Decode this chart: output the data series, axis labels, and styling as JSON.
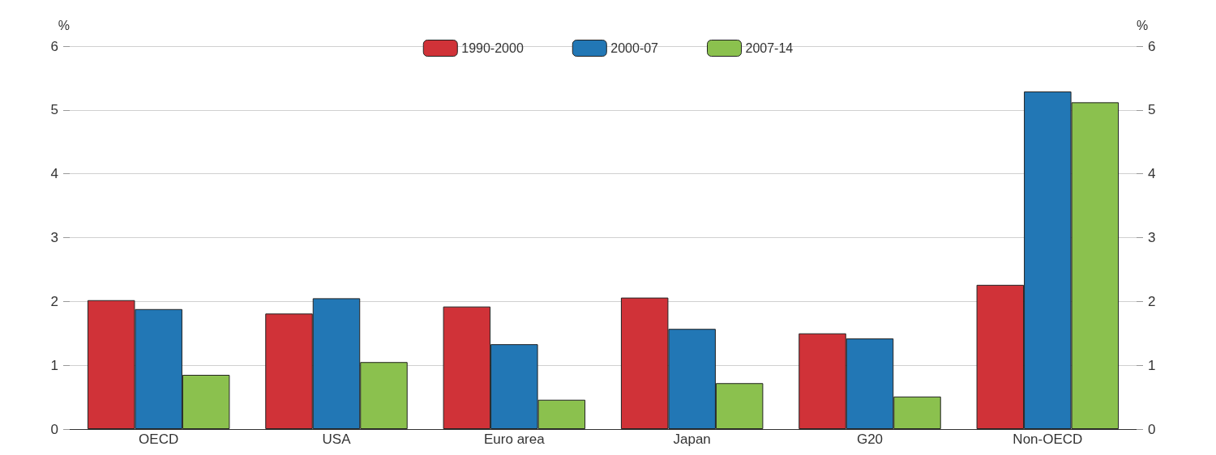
{
  "chart_data": {
    "type": "bar",
    "ylabel": "%",
    "y2label": "%",
    "categories": [
      "OECD",
      "USA",
      "Euro area",
      "Japan",
      "G20",
      "Non-OECD"
    ],
    "series": [
      {
        "name": "1990-2000",
        "color": "#d03238",
        "values": [
          2.02,
          1.81,
          1.92,
          2.06,
          1.5,
          2.26
        ]
      },
      {
        "name": "2000-07",
        "color": "#2277b5",
        "values": [
          1.88,
          2.05,
          1.33,
          1.57,
          1.42,
          5.29
        ]
      },
      {
        "name": "2007-14",
        "color": "#8bc14e",
        "values": [
          0.85,
          1.05,
          0.46,
          0.72,
          0.51,
          5.12
        ]
      }
    ],
    "ylim": [
      0,
      6
    ],
    "yticks": [
      0,
      1,
      2,
      3,
      4,
      5,
      6
    ],
    "y2lim": [
      0,
      6
    ],
    "y2ticks": [
      0,
      1,
      2,
      3,
      4,
      5,
      6
    ],
    "grid": "y",
    "legend": "top"
  }
}
